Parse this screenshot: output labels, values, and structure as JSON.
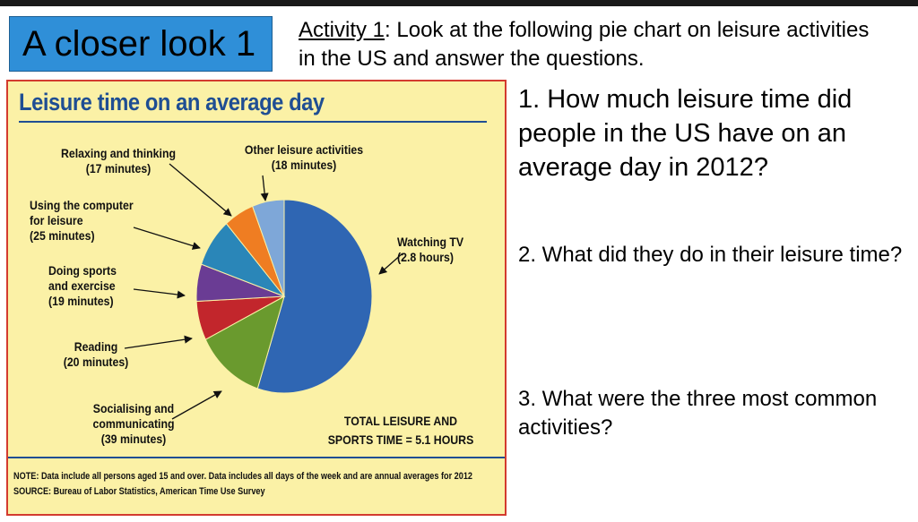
{
  "slide": {
    "title": "A closer look 1",
    "activity_label": "Activity 1",
    "activity_text": ": Look at the following pie chart on leisure activities in the US and answer the questions.",
    "questions": [
      "1. How much leisure time did people in the US have on an average day in 2012?",
      "2. What did they do in their leisure time?",
      "3. What were the three most common activities?"
    ]
  },
  "chart_data": {
    "type": "pie",
    "title": "Leisure time on an average day",
    "unit": "minutes",
    "slices": [
      {
        "name": "Watching TV",
        "value": 168,
        "label_lines": [
          "Watching TV",
          "(2.8 hours)"
        ],
        "color": "#2f66b3"
      },
      {
        "name": "Socialising and communicating",
        "value": 39,
        "label_lines": [
          "Socialising and",
          "communicating",
          "(39 minutes)"
        ],
        "color": "#6a9a2e"
      },
      {
        "name": "Reading",
        "value": 20,
        "label_lines": [
          "Reading",
          "(20 minutes)"
        ],
        "color": "#c2262c"
      },
      {
        "name": "Doing sports and exercise",
        "value": 19,
        "label_lines": [
          "Doing sports",
          "and exercise",
          "(19 minutes)"
        ],
        "color": "#6a3c94"
      },
      {
        "name": "Using the computer for leisure",
        "value": 25,
        "label_lines": [
          "Using the computer",
          "for leisure",
          "(25 minutes)"
        ],
        "color": "#2a86b8"
      },
      {
        "name": "Relaxing and thinking",
        "value": 17,
        "label_lines": [
          "Relaxing and thinking",
          "(17 minutes)"
        ],
        "color": "#ef7d22"
      },
      {
        "name": "Other leisure activities",
        "value": 18,
        "label_lines": [
          "Other leisure activities",
          "(18 minutes)"
        ],
        "color": "#7ea7d8"
      }
    ],
    "total_lines": [
      "TOTAL LEISURE AND",
      "SPORTS TIME = 5.1 HOURS"
    ],
    "note": "NOTE: Data include all persons aged 15 and over. Data includes all days of the week and are annual averages for 2012",
    "source": "SOURCE: Bureau of Labor Statistics, American Time Use Survey"
  }
}
